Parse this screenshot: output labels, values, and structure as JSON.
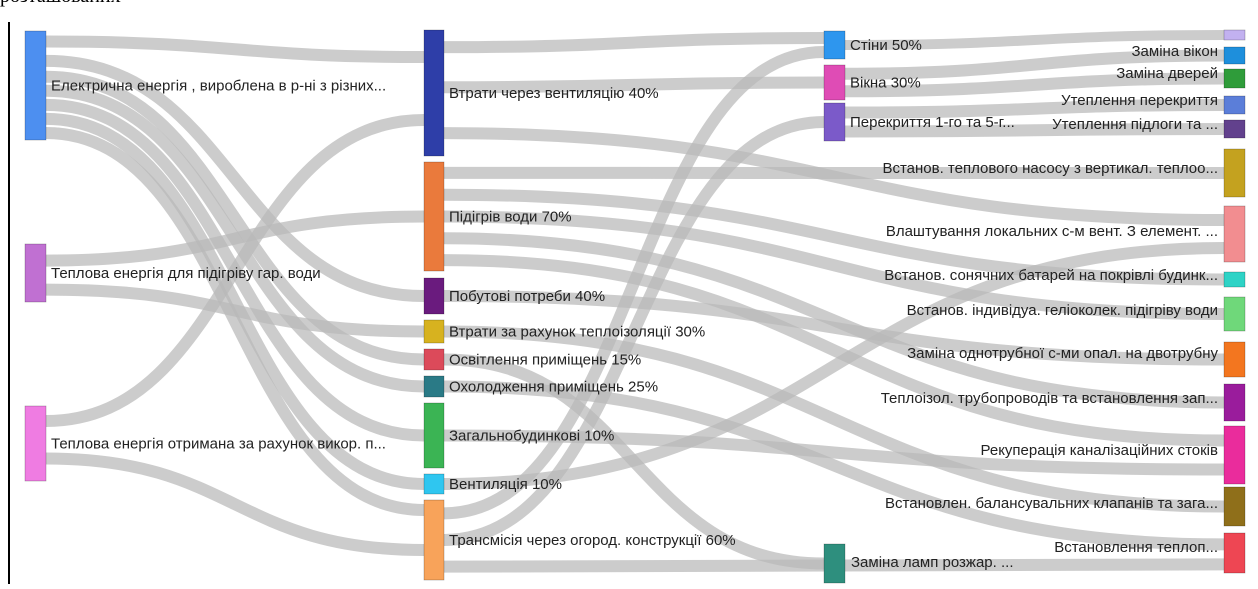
{
  "chart_data": {
    "type": "sankey",
    "nodes": [
      {
        "id": "el",
        "label": "Електрична енергія , вироблена в р-ні з різних...",
        "color": "#4d8ff0",
        "column": 0
      },
      {
        "id": "tg",
        "label": "Теплова енергія для підігріву гар. води",
        "color": "#c070d2",
        "column": 0
      },
      {
        "id": "tv",
        "label": "Теплова енергія отримана за рахунок викор. п...",
        "color": "#ef7ce2",
        "column": 0
      },
      {
        "id": "vent40",
        "label": "Втрати через вентиляцію 40%",
        "color": "#2e3ea8",
        "column": 1
      },
      {
        "id": "water",
        "label": "Підігрів води 70%",
        "color": "#ea7a3c",
        "column": 1
      },
      {
        "id": "house",
        "label": "Побутові потреби 40%",
        "color": "#6a1b7e",
        "column": 1
      },
      {
        "id": "insul",
        "label": "Втрати за рахунок теплоізоляції 30%",
        "color": "#d7b21f",
        "column": 1
      },
      {
        "id": "light",
        "label": "Освітлення приміщень 15%",
        "color": "#dc4a5a",
        "column": 1
      },
      {
        "id": "cool",
        "label": "Охолодження приміщень 25%",
        "color": "#2a7a86",
        "column": 1
      },
      {
        "id": "common",
        "label": "Загальнобудинкові 10%",
        "color": "#3bb454",
        "column": 1
      },
      {
        "id": "vent10",
        "label": "Вентиляція 10%",
        "color": "#2fc6f0",
        "column": 1
      },
      {
        "id": "trans",
        "label": "Трансмісія через огород. конструкції 60%",
        "color": "#f8a35a",
        "column": 1
      },
      {
        "id": "walls",
        "label": "Стіни 50%",
        "color": "#2e96ee",
        "column": 2
      },
      {
        "id": "windows",
        "label": "Вікна 30%",
        "color": "#df4cb5",
        "column": 2
      },
      {
        "id": "roofs",
        "label": "Перекриття 1-го та 5-г...",
        "color": "#7b5ac9",
        "column": 2
      },
      {
        "id": "heatpump",
        "label": "Встанов. теплового насосу з вертикал. теплоо...",
        "color": "#c4a21f",
        "column": 3
      },
      {
        "id": "localvent",
        "label": "Влаштування локальних с-м вент. З елемент. ...",
        "color": "#f28d90",
        "column": 3
      },
      {
        "id": "solar",
        "label": "Встанов. сонячних батарей на покрівлі будинк...",
        "color": "#2ed3c6",
        "column": 3
      },
      {
        "id": "collect",
        "label": "Встанов. індивідуа. геліоколек. підігріву води",
        "color": "#6fd87a",
        "column": 3
      },
      {
        "id": "twopipe",
        "label": "Заміна однотрубної с-ми опал. на двотрубну",
        "color": "#f3761f",
        "column": 3
      },
      {
        "id": "pipes",
        "label": "Теплоізол. трубопроводів та встановлення зап...",
        "color": "#9a1c9c",
        "column": 3
      },
      {
        "id": "recup",
        "label": "Рекуперація каналізаційних стоків",
        "color": "#ea2c9c",
        "column": 3
      },
      {
        "id": "valves",
        "label": "Встановлен. балансувальних клапанів та зага...",
        "color": "#8f6f1a",
        "column": 3
      },
      {
        "id": "lamps",
        "label": "Заміна ламп розжар. ...",
        "color": "#2e8f7e",
        "column": 2
      },
      {
        "id": "heatinst",
        "label": "Встановлення теплоп...",
        "color": "#ee4653",
        "column": 3
      },
      {
        "id": "t_top",
        "label": "",
        "color": "#c2b1f0",
        "column": 3
      },
      {
        "id": "winrep",
        "label": "Заміна вікон",
        "color": "#1e8fdc",
        "column": 3
      },
      {
        "id": "doorrep",
        "label": "Заміна дверей",
        "color": "#2f9c3a",
        "column": 3
      },
      {
        "id": "roofins",
        "label": "Утеплення перекриття",
        "color": "#5b7ed9",
        "column": 3
      },
      {
        "id": "floorins",
        "label": "Утеплення підлоги та ...",
        "color": "#62418d",
        "column": 3
      }
    ],
    "links": [
      {
        "source": "el",
        "target": "vent40",
        "value": 6
      },
      {
        "source": "el",
        "target": "house",
        "value": 5
      },
      {
        "source": "el",
        "target": "light",
        "value": 4
      },
      {
        "source": "el",
        "target": "cool",
        "value": 4
      },
      {
        "source": "el",
        "target": "common",
        "value": 4
      },
      {
        "source": "el",
        "target": "vent10",
        "value": 4
      },
      {
        "source": "el",
        "target": "trans",
        "value": 4
      },
      {
        "source": "tg",
        "target": "water",
        "value": 8
      },
      {
        "source": "tg",
        "target": "insul",
        "value": 6
      },
      {
        "source": "tv",
        "target": "vent40",
        "value": 8
      },
      {
        "source": "tv",
        "target": "trans",
        "value": 12
      },
      {
        "source": "vent40",
        "target": "walls",
        "value": 3
      },
      {
        "source": "vent40",
        "target": "windows",
        "value": 4
      },
      {
        "source": "vent40",
        "target": "localvent",
        "value": 4
      },
      {
        "source": "water",
        "target": "heatpump",
        "value": 4
      },
      {
        "source": "water",
        "target": "solar",
        "value": 4
      },
      {
        "source": "water",
        "target": "collect",
        "value": 4
      },
      {
        "source": "water",
        "target": "pipes",
        "value": 4
      },
      {
        "source": "water",
        "target": "recup",
        "value": 4
      },
      {
        "source": "house",
        "target": "twopipe",
        "value": 4
      },
      {
        "source": "insul",
        "target": "valves",
        "value": 4
      },
      {
        "source": "light",
        "target": "lamps",
        "value": 4
      },
      {
        "source": "cool",
        "target": "heatinst",
        "value": 4
      },
      {
        "source": "common",
        "target": "recup",
        "value": 4
      },
      {
        "source": "vent10",
        "target": "localvent",
        "value": 4
      },
      {
        "source": "trans",
        "target": "walls",
        "value": 3
      },
      {
        "source": "trans",
        "target": "roofs",
        "value": 3
      },
      {
        "source": "trans",
        "target": "heatinst",
        "value": 3
      },
      {
        "source": "walls",
        "target": "t_top",
        "value": 2
      },
      {
        "source": "windows",
        "target": "winrep",
        "value": 2
      },
      {
        "source": "windows",
        "target": "doorrep",
        "value": 2
      },
      {
        "source": "roofs",
        "target": "roofins",
        "value": 2
      },
      {
        "source": "roofs",
        "target": "floorins",
        "value": 2
      }
    ]
  },
  "header_fragment": "розташованих"
}
